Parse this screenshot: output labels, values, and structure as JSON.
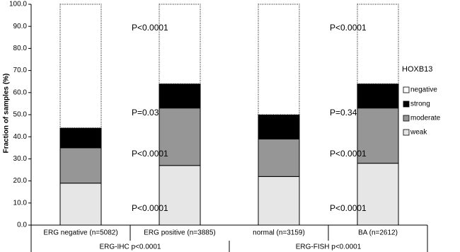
{
  "chart_data": {
    "type": "stacked-bar",
    "y_label": "Fraction of samples (%)",
    "categories": [
      "ERG negative (n=5082)",
      "ERG positive (n=3885)",
      "normal (n=3159)",
      "BA (n=2612)"
    ],
    "groups": [
      "ERG-IHC p<0.0001",
      "ERG-FISH p<0.0001"
    ],
    "legend_title": "HOXB13",
    "series": [
      {
        "name": "weak",
        "color": "#e6e6e6",
        "values": [
          19,
          27,
          22,
          28
        ]
      },
      {
        "name": "moderate",
        "color": "#969696",
        "values": [
          16,
          26,
          17,
          25
        ]
      },
      {
        "name": "strong",
        "color": "#000000",
        "values": [
          9,
          11,
          11,
          11
        ]
      },
      {
        "name": "negative",
        "color": "#ffffff",
        "values": [
          56,
          36,
          50,
          36
        ]
      }
    ],
    "p_values": [
      [
        "P<0.0001",
        "P<0.0001",
        "P=0.03",
        "P<0.0001"
      ],
      [
        "P<0.0001",
        "P<0.0001",
        "P=0.34",
        "P<0.0001"
      ]
    ],
    "ylim": [
      0,
      100
    ],
    "yticks": [
      {
        "value": 0,
        "label": "0.0"
      },
      {
        "value": 10,
        "label": "10.0"
      },
      {
        "value": 20,
        "label": "20.0"
      },
      {
        "value": 30,
        "label": "30.0"
      },
      {
        "value": 40,
        "label": "40.0"
      },
      {
        "value": 50,
        "label": "50.0"
      },
      {
        "value": 60,
        "label": "60.0"
      },
      {
        "value": 70,
        "label": "70.0"
      },
      {
        "value": 80,
        "label": "80.0"
      },
      {
        "value": 90,
        "label": "90.0"
      },
      {
        "value": 100,
        "label": "100.0"
      }
    ]
  }
}
